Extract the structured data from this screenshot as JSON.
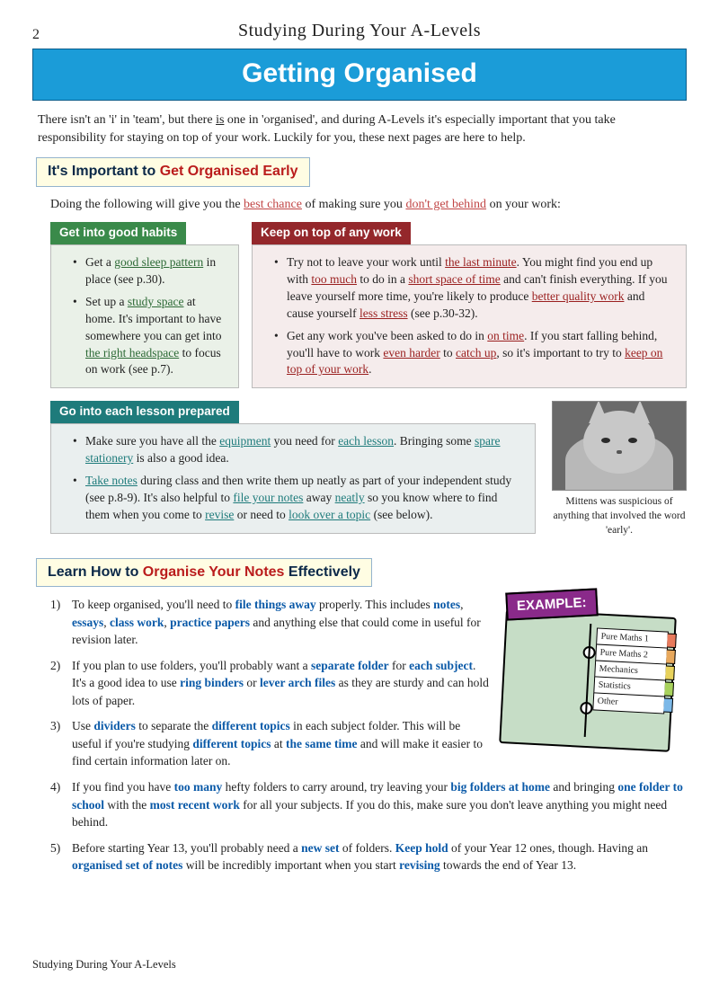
{
  "page_number": "2",
  "running_head": "Studying During Your A-Levels",
  "title": "Getting Organised",
  "intro_html": "There isn't an 'i' in 'team', but there <span class='u'>is</span> one in 'organised', and during A-Levels it's especially important that you take responsibility for staying on top of your work.  Luckily for you, these next pages are here to help.",
  "section1": {
    "heading_pre": "It's Important to ",
    "heading_red": "Get Organised Early",
    "intro_html": "Doing the following will give you the <span class='ul-pink'>best chance</span> of making sure you <span class='ul-pink'>don't get behind</span> on your work:",
    "habits_label": "Get into good habits",
    "habits_html": "<li>Get a <span class='ul-green'>good sleep pattern</span> in place (see p.30).</li><li>Set up a <span class='ul-green'>study space</span> at home.  It's important to have somewhere you can get into <span class='ul-green'>the right headspace</span> to focus on work (see p.7).</li>",
    "ontop_label": "Keep on top of any work",
    "ontop_html": "<li>Try not to leave your work until <span class='ul-red'>the last minute</span>.  You might find you end up with <span class='ul-red'>too much</span> to do in a <span class='ul-red'>short space of time</span> and can't finish everything.  If you leave yourself more time, you're likely to produce <span class='ul-red'>better quality work</span> and cause yourself <span class='ul-red'>less stress</span> (see p.30-32).</li><li>Get any work you've been asked to do in <span class='ul-red'>on time</span>. If you start falling behind, you'll have to work <span class='ul-red'>even harder</span> to <span class='ul-red'>catch up</span>, so it's important to try to <span class='ul-red'>keep on top of your work</span>.</li>",
    "prepared_label": "Go into each lesson prepared",
    "prepared_html": "<li>Make sure you have all the <span class='ul-teal'>equipment</span> you need for <span class='ul-teal'>each lesson</span>. Bringing some <span class='ul-teal'>spare stationery</span> is also a good idea.</li><li><span class='ul-teal'>Take notes</span> during class and then write them up neatly as part of your independent study (see p.8-9).  It's also helpful to <span class='ul-teal'>file your notes</span> away <span class='ul-teal'>neatly</span> so you know where to find them when you come to <span class='ul-teal'>revise</span> or need to <span class='ul-teal'>look over a topic</span> (see below).</li>",
    "cat_caption": "Mittens was suspicious of anything that involved the word 'early'."
  },
  "section2": {
    "heading_pre": "Learn How to ",
    "heading_red": "Organise Your Notes",
    "heading_post": " Effectively",
    "example_label": "EXAMPLE:",
    "tabs": [
      "Pure Maths 1",
      "Pure Maths 2",
      "Mechanics",
      "Statistics",
      "Other"
    ],
    "items_top_html": [
      "To keep organised, you'll need to <span class='b-blue'>file things away</span> properly. This includes <span class='b-blue'>notes</span>, <span class='b-blue'>essays</span>, <span class='b-blue'>class work</span>, <span class='b-blue'>practice papers</span> and anything else that could come in useful for revision later.",
      "If you plan to use folders, you'll probably want a <span class='b-blue'>separate folder</span> for <span class='b-blue'>each subject</span>.  It's a good idea to use <span class='b-blue'>ring binders</span> or <span class='b-blue'>lever arch files</span> as they are sturdy and can hold lots of paper.",
      "Use <span class='b-blue'>dividers</span> to separate the <span class='b-blue'>different topics</span> in each subject folder. This will be useful if you're studying <span class='b-blue'>different topics</span> at <span class='b-blue'>the same time</span> and will make it easier to find certain information later on."
    ],
    "items_bottom_html": [
      "If you find you have <span class='b-blue'>too many</span> hefty folders to carry around, try leaving your <span class='b-blue'>big folders at home</span> and bringing <span class='b-blue'>one folder to school</span> with the <span class='b-blue'>most recent work</span> for all your subjects.  If you do this, make sure you don't leave anything you might need behind.",
      "Before starting Year 13, you'll probably need a <span class='b-blue'>new set</span> of folders. <span class='b-blue'>Keep hold</span> of your Year 12 ones, though.  Having an <span class='b-blue'>organised set of notes</span> will be incredibly important when you start <span class='b-blue'>revising</span> towards the end of Year 13."
    ]
  },
  "footer": "Studying During Your A-Levels"
}
